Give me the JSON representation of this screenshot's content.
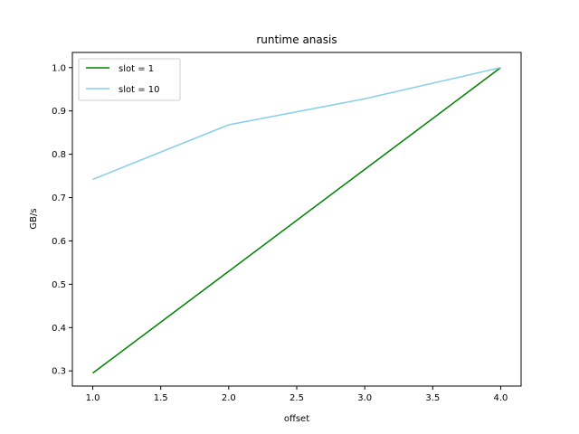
{
  "chart_data": {
    "type": "line",
    "title": "runtime anasis",
    "xlabel": "offset",
    "ylabel": "GB/s",
    "x": [
      1.0,
      2.0,
      3.0,
      4.0
    ],
    "xlim": [
      0.85,
      4.15
    ],
    "ylim": [
      0.265,
      1.035
    ],
    "xticks": [
      1.0,
      1.5,
      2.0,
      2.5,
      3.0,
      3.5,
      4.0
    ],
    "xtick_labels": [
      "1.0",
      "1.5",
      "2.0",
      "2.5",
      "3.0",
      "3.5",
      "4.0"
    ],
    "yticks": [
      0.3,
      0.4,
      0.5,
      0.6,
      0.7,
      0.8,
      0.9,
      1.0
    ],
    "ytick_labels": [
      "0.3",
      "0.4",
      "0.5",
      "0.6",
      "0.7",
      "0.8",
      "0.9",
      "1.0"
    ],
    "grid": false,
    "legend_position": "upper-left",
    "series": [
      {
        "name": "slot = 1",
        "color": "#008000",
        "values": [
          0.295,
          0.53,
          0.765,
          1.0
        ]
      },
      {
        "name": "slot = 10",
        "color": "#87ceeb",
        "values": [
          0.742,
          0.868,
          0.928,
          1.0
        ]
      }
    ]
  }
}
